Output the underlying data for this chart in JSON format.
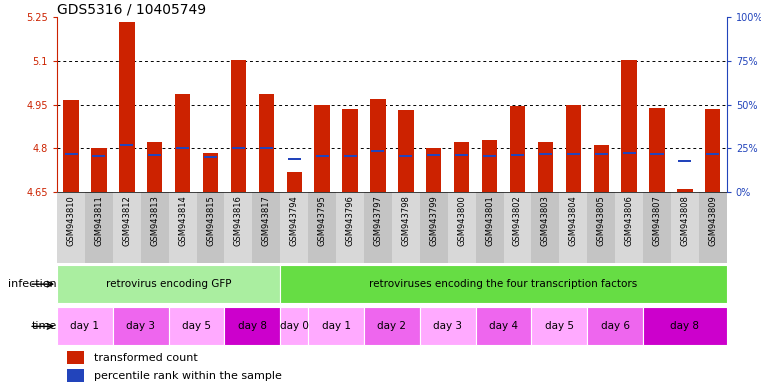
{
  "title": "GDS5316 / 10405749",
  "samples": [
    "GSM943810",
    "GSM943811",
    "GSM943812",
    "GSM943813",
    "GSM943814",
    "GSM943815",
    "GSM943816",
    "GSM943817",
    "GSM943794",
    "GSM943795",
    "GSM943796",
    "GSM943797",
    "GSM943798",
    "GSM943799",
    "GSM943800",
    "GSM943801",
    "GSM943802",
    "GSM943803",
    "GSM943804",
    "GSM943805",
    "GSM943806",
    "GSM943807",
    "GSM943808",
    "GSM943809"
  ],
  "red_values": [
    4.965,
    4.802,
    5.235,
    4.82,
    4.988,
    4.785,
    5.105,
    4.985,
    4.72,
    4.95,
    4.935,
    4.97,
    4.93,
    4.8,
    4.82,
    4.83,
    4.945,
    4.82,
    4.95,
    4.81,
    5.105,
    4.94,
    4.66,
    4.935
  ],
  "blue_values": [
    4.782,
    4.773,
    4.81,
    4.776,
    4.8,
    4.77,
    4.8,
    4.8,
    4.762,
    4.775,
    4.775,
    4.79,
    4.775,
    4.778,
    4.778,
    4.775,
    4.778,
    4.78,
    4.782,
    4.78,
    4.785,
    4.782,
    4.756,
    4.782
  ],
  "ylim_min": 4.65,
  "ylim_max": 5.25,
  "yticks": [
    4.65,
    4.8,
    4.95,
    5.1,
    5.25
  ],
  "ytick_labels": [
    "4.65",
    "4.8",
    "4.95",
    "5.1",
    "5.25"
  ],
  "right_ytick_labels": [
    "0%",
    "25%",
    "50%",
    "75%",
    "100%"
  ],
  "bar_color": "#cc2200",
  "blue_color": "#2244bb",
  "infection_groups": [
    {
      "label": "retrovirus encoding GFP",
      "start": 0,
      "end": 8,
      "color": "#aaeea0"
    },
    {
      "label": "retroviruses encoding the four transcription factors",
      "start": 8,
      "end": 24,
      "color": "#66dd44"
    }
  ],
  "time_groups": [
    {
      "label": "day 1",
      "start": 0,
      "end": 2,
      "color": "#ffaaff"
    },
    {
      "label": "day 3",
      "start": 2,
      "end": 4,
      "color": "#ee66ee"
    },
    {
      "label": "day 5",
      "start": 4,
      "end": 6,
      "color": "#ffaaff"
    },
    {
      "label": "day 8",
      "start": 6,
      "end": 8,
      "color": "#cc00cc"
    },
    {
      "label": "day 0",
      "start": 8,
      "end": 9,
      "color": "#ffaaff"
    },
    {
      "label": "day 1",
      "start": 9,
      "end": 11,
      "color": "#ffaaff"
    },
    {
      "label": "day 2",
      "start": 11,
      "end": 13,
      "color": "#ee66ee"
    },
    {
      "label": "day 3",
      "start": 13,
      "end": 15,
      "color": "#ffaaff"
    },
    {
      "label": "day 4",
      "start": 15,
      "end": 17,
      "color": "#ee66ee"
    },
    {
      "label": "day 5",
      "start": 17,
      "end": 19,
      "color": "#ffaaff"
    },
    {
      "label": "day 6",
      "start": 19,
      "end": 21,
      "color": "#ee66ee"
    },
    {
      "label": "day 8",
      "start": 21,
      "end": 24,
      "color": "#cc00cc"
    }
  ],
  "bar_width": 0.55,
  "grid_yticks": [
    4.8,
    4.95,
    5.1
  ],
  "title_fontsize": 10,
  "tick_fontsize": 7,
  "label_fontsize": 8,
  "sample_alt_colors": [
    "#d8d8d8",
    "#c4c4c4"
  ]
}
